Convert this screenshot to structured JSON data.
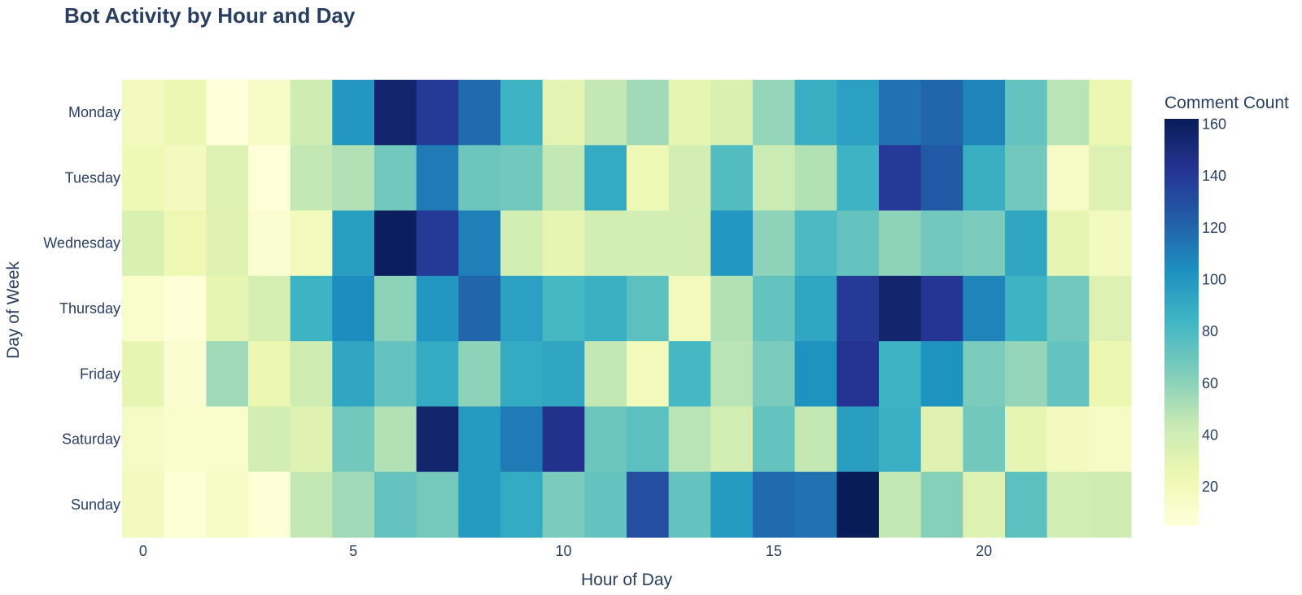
{
  "chart_data": {
    "type": "heatmap",
    "title": "Bot Activity by Hour and Day",
    "xlabel": "Hour of Day",
    "ylabel": "Day of Week",
    "x": [
      0,
      1,
      2,
      3,
      4,
      5,
      6,
      7,
      8,
      9,
      10,
      11,
      12,
      13,
      14,
      15,
      16,
      17,
      18,
      19,
      20,
      21,
      22,
      23
    ],
    "x_tick_values": [
      0,
      5,
      10,
      15,
      20
    ],
    "x_tick_labels": [
      "0",
      "5",
      "10",
      "15",
      "20"
    ],
    "y": [
      "Monday",
      "Tuesday",
      "Wednesday",
      "Thursday",
      "Friday",
      "Saturday",
      "Sunday"
    ],
    "z": [
      [
        18,
        25,
        5,
        15,
        40,
        100,
        155,
        140,
        118,
        85,
        30,
        45,
        55,
        28,
        35,
        58,
        88,
        95,
        115,
        120,
        108,
        72,
        48,
        25
      ],
      [
        22,
        18,
        33,
        5,
        45,
        50,
        68,
        112,
        70,
        68,
        45,
        90,
        22,
        38,
        78,
        42,
        50,
        85,
        140,
        125,
        88,
        68,
        15,
        33
      ],
      [
        35,
        24,
        32,
        10,
        20,
        96,
        160,
        140,
        110,
        38,
        28,
        38,
        38,
        38,
        100,
        60,
        80,
        72,
        60,
        68,
        65,
        92,
        28,
        18
      ],
      [
        12,
        6,
        28,
        37,
        85,
        105,
        60,
        100,
        120,
        95,
        82,
        87,
        75,
        20,
        50,
        72,
        92,
        140,
        155,
        142,
        108,
        85,
        68,
        33
      ],
      [
        28,
        10,
        55,
        25,
        40,
        92,
        72,
        90,
        60,
        90,
        92,
        45,
        20,
        82,
        48,
        65,
        102,
        143,
        85,
        102,
        65,
        58,
        72,
        25
      ],
      [
        15,
        12,
        12,
        38,
        32,
        68,
        50,
        155,
        98,
        112,
        145,
        70,
        75,
        48,
        38,
        72,
        45,
        96,
        87,
        32,
        68,
        28,
        18,
        15
      ],
      [
        18,
        8,
        15,
        6,
        45,
        55,
        72,
        67,
        98,
        90,
        65,
        72,
        130,
        72,
        98,
        118,
        115,
        162,
        45,
        62,
        33,
        75,
        38,
        40
      ]
    ],
    "zmin": 5,
    "zmax": 162,
    "colorscale": [
      "#ffffd9",
      "#edf8b1",
      "#c7e9b4",
      "#7fcdbb",
      "#41b6c4",
      "#1d91c0",
      "#225ea8",
      "#253494",
      "#081d58"
    ],
    "colorbar": {
      "title": "Comment Count",
      "tick_values": [
        20,
        40,
        60,
        80,
        100,
        120,
        140,
        160
      ],
      "tick_labels": [
        "20",
        "40",
        "60",
        "80",
        "100",
        "120",
        "140",
        "160"
      ]
    },
    "grid": false
  }
}
